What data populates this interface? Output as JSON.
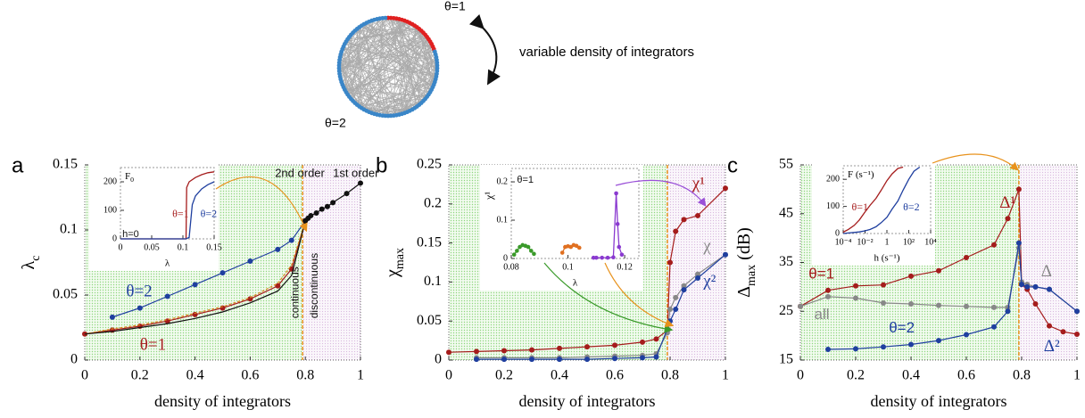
{
  "diagram": {
    "labels": [
      "θ=1",
      "θ=2"
    ],
    "caption": "variable density of integrators"
  },
  "chart_data": [
    {
      "type": "line",
      "panel": "a",
      "xlabel": "density of integrators",
      "ylabel": {
        "symbol": "λ",
        "subscript": "c"
      },
      "xlim": [
        0,
        1
      ],
      "xticks": [
        0,
        0.2,
        0.4,
        0.6,
        0.8,
        1
      ],
      "ylim": [
        0,
        0.15
      ],
      "yticks": [
        0,
        0.05,
        0.1,
        0.15
      ],
      "threshold": 0.79,
      "annotations": [
        "2nd order",
        "1st order",
        "continuous",
        "discontinuous"
      ],
      "series": [
        {
          "name": "θ=2",
          "color": "#1f3f9f",
          "markers": true,
          "x": [
            0.1,
            0.2,
            0.3,
            0.4,
            0.5,
            0.6,
            0.7,
            0.75,
            0.8
          ],
          "values": [
            0.033,
            0.04,
            0.049,
            0.058,
            0.067,
            0.076,
            0.085,
            0.092,
            0.107
          ]
        },
        {
          "name": "θ=1",
          "color": "#a51c1c",
          "markers": true,
          "x": [
            0,
            0.1,
            0.2,
            0.3,
            0.4,
            0.5,
            0.6,
            0.7,
            0.75,
            0.8
          ],
          "values": [
            0.02,
            0.023,
            0.026,
            0.03,
            0.035,
            0.04,
            0.047,
            0.057,
            0.07,
            0.107
          ]
        },
        {
          "color": "#d98a1c",
          "dash": true,
          "x": [
            0,
            0.1,
            0.2,
            0.3,
            0.4,
            0.5,
            0.6,
            0.7,
            0.75,
            0.8
          ],
          "values": [
            0.02,
            0.024,
            0.027,
            0.031,
            0.036,
            0.041,
            0.048,
            0.059,
            0.073,
            0.107
          ]
        },
        {
          "color": "#111111",
          "x": [
            0,
            0.1,
            0.2,
            0.3,
            0.4,
            0.5,
            0.6,
            0.7,
            0.75,
            0.8
          ],
          "values": [
            0.02,
            0.022,
            0.025,
            0.028,
            0.032,
            0.037,
            0.044,
            0.053,
            0.065,
            0.107
          ]
        },
        {
          "color": "#111111",
          "markers": true,
          "x": [
            0.8,
            0.81,
            0.82,
            0.84,
            0.86,
            0.88,
            0.9,
            0.95,
            1
          ],
          "values": [
            0.107,
            0.109,
            0.111,
            0.113,
            0.116,
            0.118,
            0.121,
            0.128,
            0.136
          ]
        }
      ],
      "inset": {
        "type": "line",
        "xlabel": "λ",
        "ylabel": {
          "symbol": "F",
          "subscript": "0"
        },
        "annotations": [
          "h=0"
        ],
        "xlim": [
          0,
          0.15
        ],
        "xticks": [
          0,
          0.05,
          0.1,
          0.15
        ],
        "ylim": [
          0,
          250
        ],
        "yticks": [
          0,
          100,
          200
        ],
        "series": [
          {
            "name": "θ=1",
            "color": "#a51c1c",
            "x": [
              0,
              0.1,
              0.105,
              0.106,
              0.11,
              0.12,
              0.13,
              0.14,
              0.15
            ],
            "values": [
              0,
              0,
              0,
              180,
              200,
              215,
              225,
              232,
              235
            ]
          },
          {
            "name": "θ=2",
            "color": "#1f3f9f",
            "x": [
              0,
              0.105,
              0.11,
              0.115,
              0.12,
              0.13,
              0.14,
              0.15
            ],
            "values": [
              0,
              0,
              5,
              120,
              150,
              175,
              190,
              200
            ]
          }
        ]
      }
    },
    {
      "type": "line",
      "panel": "b",
      "xlabel": "density of integrators",
      "ylabel": {
        "symbol": "χ",
        "subscript": "max"
      },
      "xlim": [
        0,
        1
      ],
      "xticks": [
        0,
        0.2,
        0.4,
        0.6,
        0.8,
        1
      ],
      "ylim": [
        0,
        0.25
      ],
      "yticks": [
        0,
        0.05,
        0.1,
        0.15,
        0.2,
        0.25
      ],
      "threshold": 0.79,
      "series": [
        {
          "name": "χ¹",
          "color": "#a51c1c",
          "markers": true,
          "x": [
            0,
            0.1,
            0.2,
            0.3,
            0.4,
            0.5,
            0.6,
            0.7,
            0.75,
            0.79,
            0.8,
            0.82,
            0.85,
            0.9,
            1
          ],
          "values": [
            0.01,
            0.011,
            0.012,
            0.013,
            0.015,
            0.017,
            0.019,
            0.023,
            0.027,
            0.038,
            0.125,
            0.165,
            0.18,
            0.185,
            0.22
          ]
        },
        {
          "name": "χ",
          "color": "#888888",
          "markers": true,
          "x": [
            0.1,
            0.2,
            0.3,
            0.4,
            0.5,
            0.6,
            0.7,
            0.75,
            0.79,
            0.8,
            0.82,
            0.85,
            0.9,
            1
          ],
          "values": [
            0.003,
            0.003,
            0.003,
            0.003,
            0.004,
            0.005,
            0.006,
            0.008,
            0.035,
            0.065,
            0.08,
            0.095,
            0.11,
            0.135
          ]
        },
        {
          "name": "χ²",
          "color": "#1f3f9f",
          "markers": true,
          "x": [
            0.1,
            0.2,
            0.3,
            0.4,
            0.5,
            0.6,
            0.7,
            0.75,
            0.79,
            0.8,
            0.82,
            0.85,
            0.9,
            1
          ],
          "values": [
            0.001,
            0.001,
            0.001,
            0.001,
            0.001,
            0.002,
            0.003,
            0.004,
            0.04,
            0.05,
            0.065,
            0.09,
            0.105,
            0.135
          ]
        }
      ],
      "inset": {
        "type": "line",
        "xlabel": "λ",
        "ylabel": {
          "symbol": "χ¹"
        },
        "annotations": [
          "θ=1"
        ],
        "xlim": [
          0.08,
          0.125
        ],
        "xticks": [
          0.08,
          0.1,
          0.12
        ],
        "ylim": [
          0,
          0.235
        ],
        "yticks": [
          0,
          0.1,
          0.2
        ],
        "series": [
          {
            "color": "#3a9a2a",
            "markers": true,
            "x": [
              0.081,
              0.082,
              0.083,
              0.084,
              0.085,
              0.086,
              0.087,
              0.088
            ],
            "values": [
              0.01,
              0.02,
              0.03,
              0.035,
              0.033,
              0.03,
              0.02,
              0.012
            ]
          },
          {
            "color": "#e07020",
            "markers": true,
            "x": [
              0.098,
              0.099,
              0.1,
              0.101,
              0.102,
              0.103,
              0.104
            ],
            "values": [
              0.015,
              0.03,
              0.032,
              0.03,
              0.035,
              0.033,
              0.028
            ]
          },
          {
            "color": "#8a3ad0",
            "markers": true,
            "x": [
              0.109,
              0.11,
              0.112,
              0.114,
              0.116,
              0.117,
              0.1175,
              0.118,
              0.119
            ],
            "values": [
              0.002,
              0.002,
              0.002,
              0.002,
              0.003,
              0.17,
              0.09,
              0.03,
              0.01
            ]
          }
        ]
      }
    },
    {
      "type": "line",
      "panel": "c",
      "xlabel": "density of integrators",
      "ylabel": {
        "symbol": "Δ",
        "subscript": "max",
        "unit": "(dB)"
      },
      "xlim": [
        0,
        1
      ],
      "xticks": [
        0,
        0.2,
        0.4,
        0.6,
        0.8,
        1
      ],
      "ylim": [
        15,
        55
      ],
      "yticks": [
        15,
        25,
        35,
        45,
        55
      ],
      "threshold": 0.79,
      "annotations": [
        "θ=1",
        "θ=2",
        "all"
      ],
      "series": [
        {
          "name": "Δ¹",
          "color": "#a51c1c",
          "markers": true,
          "x": [
            0,
            0.1,
            0.2,
            0.3,
            0.4,
            0.5,
            0.6,
            0.7,
            0.75,
            0.79,
            0.8,
            0.82,
            0.85,
            0.9,
            0.95,
            1
          ],
          "values": [
            26,
            29.3,
            30.2,
            30.4,
            32.2,
            33.3,
            36,
            38.6,
            44,
            50,
            30.5,
            29.5,
            26.5,
            22,
            20.8,
            20.3
          ]
        },
        {
          "name": "Δ",
          "color": "#888888",
          "markers": true,
          "x": [
            0,
            0.1,
            0.2,
            0.3,
            0.4,
            0.5,
            0.6,
            0.7,
            0.75,
            0.79,
            0.8,
            0.82,
            0.85,
            0.9,
            1
          ],
          "values": [
            26,
            28,
            27.7,
            26.7,
            26.5,
            26.2,
            26,
            25.8,
            25.8,
            38,
            31,
            30.5,
            30,
            29.5,
            25
          ]
        },
        {
          "name": "Δ²",
          "color": "#1f3f9f",
          "markers": true,
          "x": [
            0.1,
            0.2,
            0.3,
            0.4,
            0.5,
            0.6,
            0.7,
            0.75,
            0.79,
            0.8,
            0.82,
            0.85,
            0.9,
            1
          ],
          "values": [
            17.2,
            17.3,
            17.7,
            18.2,
            19,
            20.2,
            21.8,
            25,
            39,
            30.5,
            30,
            30,
            29.5,
            25
          ]
        }
      ],
      "inset": {
        "type": "line",
        "log_x": true,
        "xlabel": "h (s⁻¹)",
        "ylabel": {
          "symbol": "F (s⁻¹)"
        },
        "xlim": [
          0.0001,
          10000
        ],
        "xticks": [
          {
            "value": 0.0001,
            "label": "10⁻⁴"
          },
          {
            "value": 0.01,
            "label": "10⁻²"
          },
          1,
          {
            "value": 100,
            "label": "10²"
          },
          {
            "value": 10000,
            "label": "10⁴"
          }
        ],
        "ylim": [
          0,
          250
        ],
        "yticks": [
          0,
          100,
          200
        ],
        "series": [
          {
            "name": "θ=1",
            "color": "#a51c1c",
            "x": [
              0.0001,
              0.0003,
              0.001,
              0.003,
              0.01,
              0.03,
              0.1,
              0.3,
              1,
              3,
              10,
              30
            ],
            "values": [
              5,
              15,
              30,
              50,
              80,
              105,
              130,
              160,
              195,
              220,
              240,
              245
            ]
          },
          {
            "name": "θ=2",
            "color": "#1f3f9f",
            "x": [
              0.0001,
              0.0003,
              0.001,
              0.003,
              0.01,
              0.03,
              0.1,
              0.3,
              1,
              3,
              10,
              30,
              100,
              300,
              1000
            ],
            "values": [
              0,
              2,
              4,
              6,
              10,
              15,
              25,
              40,
              60,
              90,
              120,
              160,
              200,
              230,
              245
            ]
          }
        ]
      }
    }
  ]
}
